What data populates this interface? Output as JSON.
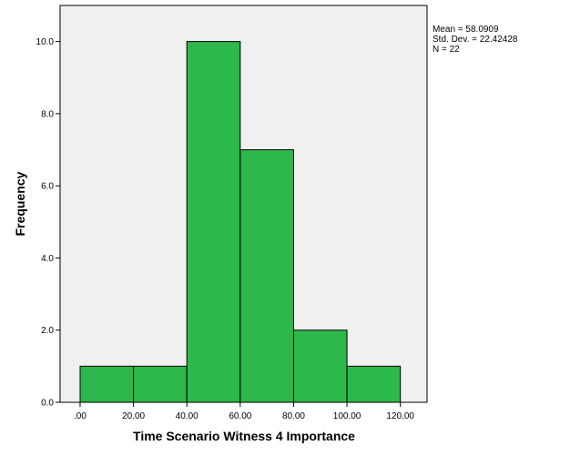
{
  "chart_data": {
    "type": "bar",
    "histogram": true,
    "title": "",
    "xlabel": "Time Scenario Witness 4 Importance",
    "ylabel": "Frequency",
    "bins": [
      {
        "start": 0,
        "end": 20,
        "value": 1
      },
      {
        "start": 20,
        "end": 40,
        "value": 1
      },
      {
        "start": 40,
        "end": 60,
        "value": 10
      },
      {
        "start": 60,
        "end": 80,
        "value": 7
      },
      {
        "start": 80,
        "end": 100,
        "value": 2
      },
      {
        "start": 100,
        "end": 120,
        "value": 1
      }
    ],
    "xlim": [
      -7.5,
      130
    ],
    "ylim": [
      0,
      11
    ],
    "x_ticks": [
      0,
      20,
      40,
      60,
      80,
      100,
      120
    ],
    "x_tick_labels": [
      ".00",
      "20.00",
      "40.00",
      "60.00",
      "80.00",
      "100.00",
      "120.00"
    ],
    "y_ticks": [
      0,
      2,
      4,
      6,
      8,
      10
    ],
    "y_tick_labels": [
      "0.0",
      "2.0",
      "4.0",
      "6.0",
      "8.0",
      "10.0"
    ],
    "bar_color": "#2db84b",
    "plot_background": "#f0f0f0",
    "grid": false,
    "stats": [
      "Mean = 58.0909",
      "Std. Dev. = 22.42428",
      "N = 22"
    ]
  }
}
